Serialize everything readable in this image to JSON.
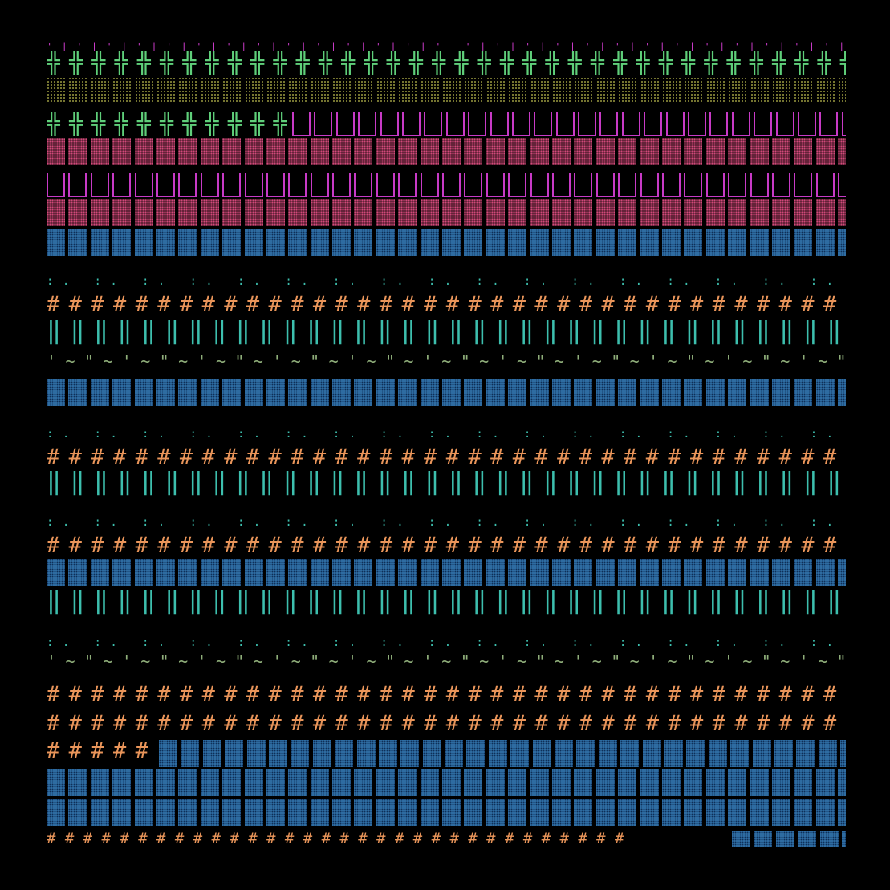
{
  "background": "#000000",
  "colors": {
    "green": "#5fcf7a",
    "olive_dots": "#8a8a3a",
    "magenta": "#c73ac6",
    "pink_dots": "#d04a7a",
    "pink_fill": "#5a1f33",
    "blue": "#2f6da3",
    "teal": "#3dbfae",
    "orange": "#e9955a",
    "sage": "#8fae7a"
  },
  "rows": [
    {
      "name": "row-magenta-ticks",
      "segments": [
        {
          "kind": "glyph",
          "text": "'|'|'|'|'|'|'|'|'|'|'|'|'|'|'|'|'|'|'|'|'|'|'|'|'|'|'|'|'|'|'|'|'|'|'|'|'|'|'|'|",
          "color": "magenta"
        }
      ]
    },
    {
      "name": "row-green-crosses-1",
      "segments": [
        {
          "kind": "glyph",
          "text": "╬╬╬╬╬╬╬╬╬╬╬╬╬╬╬╬╬╬╬╬╬╬╬╬╬╬╬╬╬╬╬╬╬╬╬╬╬",
          "color": "green"
        }
      ]
    },
    {
      "name": "row-olive-dots",
      "segments": [
        {
          "kind": "block",
          "style": "dotted",
          "color": "olive_dots"
        }
      ]
    },
    {
      "name": "row-mixed-crosses-bars",
      "segments": [
        {
          "kind": "glyph",
          "text": "╬╬╬╬╬╬╬╬╬╬╬",
          "color": "green"
        },
        {
          "kind": "block",
          "style": "bars",
          "color": "magenta"
        }
      ]
    },
    {
      "name": "row-pink-dots-1",
      "segments": [
        {
          "kind": "block",
          "style": "dotted-fill",
          "color": "pink_dots"
        }
      ]
    },
    {
      "name": "row-magenta-bars",
      "segments": [
        {
          "kind": "block",
          "style": "bars",
          "color": "magenta"
        }
      ]
    },
    {
      "name": "row-pink-dots-2",
      "segments": [
        {
          "kind": "block",
          "style": "dotted-fill",
          "color": "pink_dots"
        }
      ]
    },
    {
      "name": "row-blue-blocks-1",
      "segments": [
        {
          "kind": "block",
          "style": "hatch",
          "color": "blue"
        }
      ]
    },
    {
      "name": "row-teal-dots-1",
      "segments": [
        {
          "kind": "glyph",
          "text": ":. :. :. :. :. :. :. :. :. :. :. :. :. :. :. :. :. :. :. :. :. :. :. :. :. :. :. :. :. :. :. :. :. :. :. :. :.",
          "color": "teal"
        }
      ]
    },
    {
      "name": "row-orange-hash-1",
      "segments": [
        {
          "kind": "glyph",
          "text": "####################################",
          "color": "orange"
        }
      ]
    },
    {
      "name": "row-teal-pipes-1",
      "segments": [
        {
          "kind": "glyph",
          "text": "‖‖‖‖‖‖‖‖‖‖‖‖‖‖‖‖‖‖‖‖‖‖‖‖‖‖‖‖‖‖‖‖‖‖‖‖",
          "color": "teal"
        }
      ]
    },
    {
      "name": "row-sage-tilde-1",
      "segments": [
        {
          "kind": "glyph",
          "text": "'~\"~'~\"~'~\"~'~\"~'~\"~'~\"~'~\"~'~\"~'~\"~'~\"~'~\"~'~\"~'~\"~'~\"~'~\"~'~\"~'~\"~'~\"~.",
          "color": "sage"
        }
      ]
    },
    {
      "name": "row-blue-blocks-2",
      "segments": [
        {
          "kind": "block",
          "style": "hatch",
          "color": "blue"
        }
      ]
    },
    {
      "name": "row-teal-dots-2",
      "segments": [
        {
          "kind": "glyph",
          "text": ":. :. :. :. :. :. :. :. :. :. :. :. :. :. :. :. :. :. :. :. :. :. :. :. :. :. :. :. :. :. :. :. :. :. :. :. :.",
          "color": "teal"
        }
      ]
    },
    {
      "name": "row-orange-hash-2",
      "segments": [
        {
          "kind": "glyph",
          "text": "####################################",
          "color": "orange"
        }
      ]
    },
    {
      "name": "row-teal-pipes-2",
      "segments": [
        {
          "kind": "glyph",
          "text": "‖‖‖‖‖‖‖‖‖‖‖‖‖‖‖‖‖‖‖‖‖‖‖‖‖‖‖‖‖‖‖‖‖‖‖‖",
          "color": "teal"
        }
      ]
    },
    {
      "name": "row-teal-dots-3",
      "segments": [
        {
          "kind": "glyph",
          "text": ":. :. :. :. :. :. :. :. :. :. :. :. :. :. :. :. :. :. :. :. :. :. :. :. :. :. :. :. :. :. :. :. :. :. :. :. :.",
          "color": "teal"
        }
      ]
    },
    {
      "name": "row-orange-hash-3",
      "segments": [
        {
          "kind": "glyph",
          "text": "####################################",
          "color": "orange"
        }
      ]
    },
    {
      "name": "row-blue-blocks-3",
      "segments": [
        {
          "kind": "block",
          "style": "hatch",
          "color": "blue"
        }
      ]
    },
    {
      "name": "row-teal-pipes-3",
      "segments": [
        {
          "kind": "glyph",
          "text": "‖‖‖‖‖‖‖‖‖‖‖‖‖‖‖‖‖‖‖‖‖‖‖‖‖‖‖‖‖‖‖‖‖‖‖‖",
          "color": "teal"
        }
      ]
    },
    {
      "name": "row-teal-dots-4",
      "segments": [
        {
          "kind": "glyph",
          "text": ":. :. :. :. :. :. :. :. :. :. :. :. :. :. :. :. :. :. :. :. :. :. :. :. :. :. :. :. :. :. :. :. :. :. :. :. :.",
          "color": "teal"
        }
      ]
    },
    {
      "name": "row-sage-tilde-2",
      "segments": [
        {
          "kind": "glyph",
          "text": "'~\"~'~\"~'~\"~'~\"~'~\"~'~\"~'~\"~'~\"~'~\"~'~\"~'~\"~'~\"~'~\"~'~\"~'~\"~'~\"~'~\"~'~\"~.",
          "color": "sage"
        }
      ]
    },
    {
      "name": "row-orange-hash-4",
      "segments": [
        {
          "kind": "glyph",
          "text": "####################################",
          "color": "orange"
        }
      ]
    },
    {
      "name": "row-orange-hash-5",
      "segments": [
        {
          "kind": "glyph",
          "text": "####################################",
          "color": "orange"
        }
      ]
    },
    {
      "name": "row-mixed-hash-blocks",
      "segments": [
        {
          "kind": "glyph",
          "text": "#####",
          "color": "orange"
        },
        {
          "kind": "block",
          "style": "hatch",
          "color": "blue"
        }
      ]
    },
    {
      "name": "row-blue-blocks-4",
      "segments": [
        {
          "kind": "block",
          "style": "hatch",
          "color": "blue"
        }
      ]
    },
    {
      "name": "row-blue-blocks-5",
      "segments": [
        {
          "kind": "block",
          "style": "hatch",
          "color": "blue"
        }
      ]
    },
    {
      "name": "row-mixed-hash-small-blocks",
      "segments": [
        {
          "kind": "glyph",
          "text": "################################",
          "color": "orange"
        },
        {
          "kind": "block",
          "style": "hatch",
          "color": "blue"
        }
      ]
    }
  ]
}
